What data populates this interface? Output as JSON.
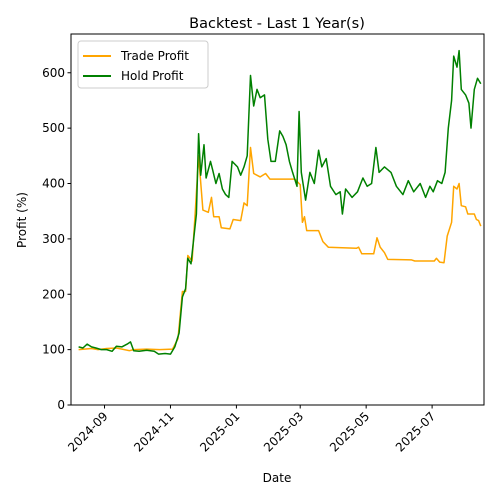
{
  "chart_data": {
    "type": "line",
    "title": "Backtest - Last 1 Year(s)",
    "xlabel": "Date",
    "ylabel": "Profit (%)",
    "xlim": [
      "2024-08-01",
      "2025-08-18"
    ],
    "ylim": [
      0,
      670
    ],
    "y_ticks": [
      0,
      100,
      200,
      300,
      400,
      500,
      600
    ],
    "x_ticks": [
      {
        "date": "2024-09-01",
        "label": "2024-09"
      },
      {
        "date": "2024-11-01",
        "label": "2024-11"
      },
      {
        "date": "2025-01-01",
        "label": "2025-01"
      },
      {
        "date": "2025-03-01",
        "label": "2025-03"
      },
      {
        "date": "2025-05-01",
        "label": "2025-05"
      },
      {
        "date": "2025-07-01",
        "label": "2025-07"
      }
    ],
    "grid": false,
    "legend_position": "top-left",
    "series": [
      {
        "name": "Trade Profit",
        "color": "#ffa500",
        "points": [
          [
            "2024-08-08",
            100
          ],
          [
            "2024-08-20",
            102
          ],
          [
            "2024-08-26",
            100
          ],
          [
            "2024-09-03",
            102
          ],
          [
            "2024-09-12",
            103
          ],
          [
            "2024-09-24",
            98
          ],
          [
            "2024-09-28",
            100
          ],
          [
            "2024-10-10",
            101
          ],
          [
            "2024-10-22",
            100
          ],
          [
            "2024-11-03",
            101
          ],
          [
            "2024-11-08",
            120
          ],
          [
            "2024-11-12",
            205
          ],
          [
            "2024-11-15",
            205
          ],
          [
            "2024-11-17",
            270
          ],
          [
            "2024-11-21",
            260
          ],
          [
            "2024-11-24",
            350
          ],
          [
            "2024-11-27",
            450
          ],
          [
            "2024-12-01",
            352
          ],
          [
            "2024-12-06",
            348
          ],
          [
            "2024-12-09",
            375
          ],
          [
            "2024-12-11",
            340
          ],
          [
            "2024-12-16",
            340
          ],
          [
            "2024-12-18",
            320
          ],
          [
            "2024-12-26",
            318
          ],
          [
            "2024-12-29",
            335
          ],
          [
            "2025-01-05",
            333
          ],
          [
            "2025-01-08",
            365
          ],
          [
            "2025-01-11",
            360
          ],
          [
            "2025-01-14",
            465
          ],
          [
            "2025-01-17",
            418
          ],
          [
            "2025-01-23",
            412
          ],
          [
            "2025-01-28",
            418
          ],
          [
            "2025-02-01",
            408
          ],
          [
            "2025-02-24",
            408
          ],
          [
            "2025-03-01",
            398
          ],
          [
            "2025-03-03",
            330
          ],
          [
            "2025-03-05",
            340
          ],
          [
            "2025-03-07",
            315
          ],
          [
            "2025-03-18",
            315
          ],
          [
            "2025-03-22",
            295
          ],
          [
            "2025-03-27",
            285
          ],
          [
            "2025-04-22",
            283
          ],
          [
            "2025-04-24",
            285
          ],
          [
            "2025-04-27",
            273
          ],
          [
            "2025-05-08",
            273
          ],
          [
            "2025-05-11",
            302
          ],
          [
            "2025-05-14",
            285
          ],
          [
            "2025-05-18",
            275
          ],
          [
            "2025-05-21",
            263
          ],
          [
            "2025-06-12",
            262
          ],
          [
            "2025-06-15",
            260
          ],
          [
            "2025-07-03",
            260
          ],
          [
            "2025-07-05",
            265
          ],
          [
            "2025-07-08",
            258
          ],
          [
            "2025-07-12",
            257
          ],
          [
            "2025-07-15",
            305
          ],
          [
            "2025-07-19",
            330
          ],
          [
            "2025-07-21",
            395
          ],
          [
            "2025-07-24",
            390
          ],
          [
            "2025-07-26",
            400
          ],
          [
            "2025-07-28",
            360
          ],
          [
            "2025-08-01",
            358
          ],
          [
            "2025-08-03",
            345
          ],
          [
            "2025-08-09",
            345
          ],
          [
            "2025-08-11",
            335
          ],
          [
            "2025-08-13",
            333
          ],
          [
            "2025-08-15",
            323
          ]
        ]
      },
      {
        "name": "Hold Profit",
        "color": "#008000",
        "points": [
          [
            "2024-08-08",
            105
          ],
          [
            "2024-08-12",
            103
          ],
          [
            "2024-08-16",
            110
          ],
          [
            "2024-08-20",
            105
          ],
          [
            "2024-08-24",
            103
          ],
          [
            "2024-08-29",
            100
          ],
          [
            "2024-09-03",
            100
          ],
          [
            "2024-09-08",
            97
          ],
          [
            "2024-09-12",
            106
          ],
          [
            "2024-09-17",
            105
          ],
          [
            "2024-09-22",
            110
          ],
          [
            "2024-09-25",
            114
          ],
          [
            "2024-09-28",
            98
          ],
          [
            "2024-10-03",
            97
          ],
          [
            "2024-10-10",
            99
          ],
          [
            "2024-10-17",
            97
          ],
          [
            "2024-10-21",
            92
          ],
          [
            "2024-10-27",
            93
          ],
          [
            "2024-11-01",
            92
          ],
          [
            "2024-11-05",
            105
          ],
          [
            "2024-11-09",
            130
          ],
          [
            "2024-11-12",
            195
          ],
          [
            "2024-11-15",
            210
          ],
          [
            "2024-11-17",
            265
          ],
          [
            "2024-11-20",
            255
          ],
          [
            "2024-11-23",
            310
          ],
          [
            "2024-11-25",
            345
          ],
          [
            "2024-11-27",
            490
          ],
          [
            "2024-11-29",
            415
          ],
          [
            "2024-12-02",
            470
          ],
          [
            "2024-12-04",
            410
          ],
          [
            "2024-12-08",
            440
          ],
          [
            "2024-12-10",
            425
          ],
          [
            "2024-12-13",
            400
          ],
          [
            "2024-12-16",
            418
          ],
          [
            "2024-12-19",
            390
          ],
          [
            "2024-12-22",
            380
          ],
          [
            "2024-12-25",
            375
          ],
          [
            "2024-12-28",
            440
          ],
          [
            "2025-01-02",
            430
          ],
          [
            "2025-01-05",
            415
          ],
          [
            "2025-01-08",
            430
          ],
          [
            "2025-01-11",
            450
          ],
          [
            "2025-01-14",
            595
          ],
          [
            "2025-01-17",
            540
          ],
          [
            "2025-01-20",
            570
          ],
          [
            "2025-01-23",
            555
          ],
          [
            "2025-01-27",
            560
          ],
          [
            "2025-01-30",
            480
          ],
          [
            "2025-02-02",
            440
          ],
          [
            "2025-02-06",
            440
          ],
          [
            "2025-02-10",
            495
          ],
          [
            "2025-02-13",
            485
          ],
          [
            "2025-02-16",
            470
          ],
          [
            "2025-02-19",
            440
          ],
          [
            "2025-02-22",
            420
          ],
          [
            "2025-02-26",
            395
          ],
          [
            "2025-02-28",
            530
          ],
          [
            "2025-03-02",
            420
          ],
          [
            "2025-03-06",
            370
          ],
          [
            "2025-03-10",
            420
          ],
          [
            "2025-03-14",
            400
          ],
          [
            "2025-03-18",
            460
          ],
          [
            "2025-03-21",
            430
          ],
          [
            "2025-03-25",
            445
          ],
          [
            "2025-03-29",
            395
          ],
          [
            "2025-04-03",
            380
          ],
          [
            "2025-04-07",
            385
          ],
          [
            "2025-04-09",
            345
          ],
          [
            "2025-04-12",
            390
          ],
          [
            "2025-04-18",
            375
          ],
          [
            "2025-04-23",
            385
          ],
          [
            "2025-04-28",
            410
          ],
          [
            "2025-05-02",
            395
          ],
          [
            "2025-05-06",
            400
          ],
          [
            "2025-05-10",
            465
          ],
          [
            "2025-05-13",
            420
          ],
          [
            "2025-05-18",
            430
          ],
          [
            "2025-05-24",
            420
          ],
          [
            "2025-05-29",
            395
          ],
          [
            "2025-06-04",
            380
          ],
          [
            "2025-06-09",
            405
          ],
          [
            "2025-06-14",
            385
          ],
          [
            "2025-06-20",
            400
          ],
          [
            "2025-06-25",
            375
          ],
          [
            "2025-06-29",
            395
          ],
          [
            "2025-07-02",
            385
          ],
          [
            "2025-07-06",
            405
          ],
          [
            "2025-07-10",
            400
          ],
          [
            "2025-07-13",
            420
          ],
          [
            "2025-07-16",
            500
          ],
          [
            "2025-07-19",
            550
          ],
          [
            "2025-07-21",
            630
          ],
          [
            "2025-07-24",
            610
          ],
          [
            "2025-07-26",
            640
          ],
          [
            "2025-07-28",
            570
          ],
          [
            "2025-08-01",
            560
          ],
          [
            "2025-08-04",
            545
          ],
          [
            "2025-08-06",
            500
          ],
          [
            "2025-08-09",
            570
          ],
          [
            "2025-08-12",
            590
          ],
          [
            "2025-08-15",
            580
          ]
        ]
      }
    ]
  }
}
